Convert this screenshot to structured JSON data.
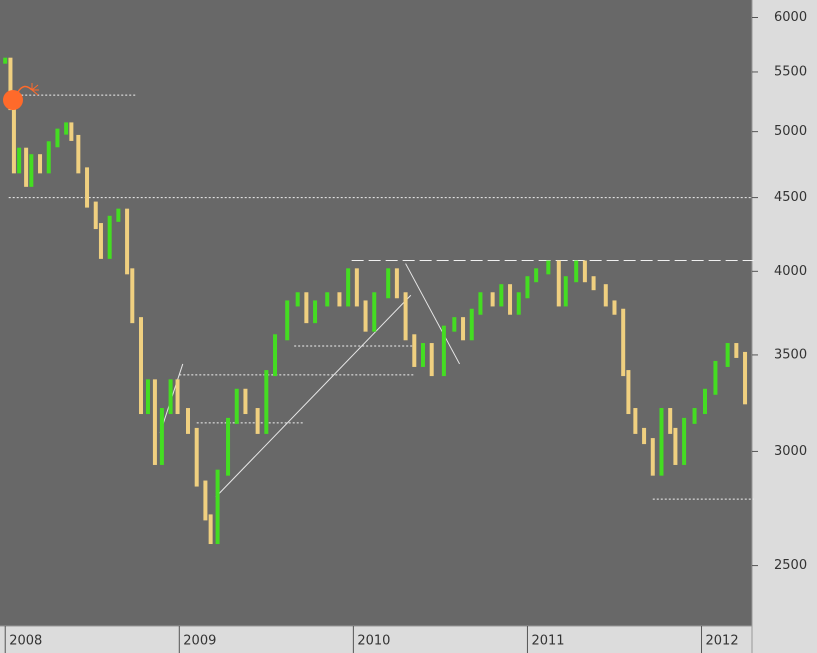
{
  "chart_data": {
    "type": "ohlc",
    "log_scale": true,
    "up_color": "#44dd22",
    "down_color": "#f0d080",
    "x": [
      2008.0,
      2008.03,
      2008.05,
      2008.08,
      2008.12,
      2008.15,
      2008.2,
      2008.25,
      2008.3,
      2008.35,
      2008.38,
      2008.42,
      2008.47,
      2008.52,
      2008.55,
      2008.6,
      2008.65,
      2008.7,
      2008.73,
      2008.78,
      2008.82,
      2008.86,
      2008.9,
      2008.95,
      2008.99,
      2009.05,
      2009.1,
      2009.15,
      2009.18,
      2009.22,
      2009.28,
      2009.33,
      2009.38,
      2009.45,
      2009.5,
      2009.55,
      2009.62,
      2009.68,
      2009.73,
      2009.78,
      2009.85,
      2009.92,
      2009.97,
      2010.02,
      2010.07,
      2010.12,
      2010.2,
      2010.25,
      2010.3,
      2010.35,
      2010.4,
      2010.45,
      2010.52,
      2010.58,
      2010.63,
      2010.68,
      2010.73,
      2010.8,
      2010.85,
      2010.9,
      2010.95,
      2011.0,
      2011.05,
      2011.12,
      2011.18,
      2011.22,
      2011.28,
      2011.33,
      2011.38,
      2011.45,
      2011.5,
      2011.55,
      2011.58,
      2011.62,
      2011.67,
      2011.72,
      2011.77,
      2011.82,
      2011.85,
      2011.9,
      2011.96,
      2012.02,
      2012.08,
      2012.15,
      2012.2,
      2012.25
    ],
    "values": [
      5600,
      5200,
      4700,
      4850,
      4600,
      4800,
      4700,
      4900,
      5000,
      5050,
      4950,
      4700,
      4450,
      4300,
      4100,
      4350,
      4400,
      4000,
      3700,
      3200,
      3350,
      2950,
      3200,
      3350,
      3200,
      3100,
      2850,
      2700,
      2600,
      2900,
      3150,
      3300,
      3200,
      3100,
      3400,
      3600,
      3800,
      3850,
      3700,
      3800,
      3850,
      3800,
      4000,
      3800,
      3650,
      3850,
      4000,
      3850,
      3600,
      3450,
      3550,
      3400,
      3650,
      3700,
      3600,
      3750,
      3850,
      3800,
      3900,
      3750,
      3850,
      3950,
      4000,
      4050,
      3800,
      3950,
      4050,
      3950,
      3900,
      3800,
      3750,
      3400,
      3200,
      3100,
      3050,
      2900,
      3200,
      3100,
      2950,
      3150,
      3200,
      3300,
      3450,
      3550,
      3500,
      3250
    ],
    "levels": [
      {
        "value": 5300,
        "from": 2008.0,
        "to": 2008.75,
        "style": "dotted"
      },
      {
        "value": 4500,
        "from": 2008.02,
        "to": 2012.3,
        "style": "dotted"
      },
      {
        "value": 4070,
        "from": 2009.99,
        "to": 2012.3,
        "style": "dashed"
      },
      {
        "value": 3550,
        "from": 2009.66,
        "to": 2010.35,
        "style": "dotted"
      },
      {
        "value": 3390,
        "from": 2009.0,
        "to": 2010.35,
        "style": "dotted"
      },
      {
        "value": 3140,
        "from": 2009.1,
        "to": 2009.72,
        "style": "dotted"
      },
      {
        "value": 2780,
        "from": 2011.72,
        "to": 2012.3,
        "style": "dotted"
      }
    ],
    "trendlines": [
      {
        "x": [
          2009.21,
          2010.33
        ],
        "y": [
          2790,
          3850
        ]
      },
      {
        "x": [
          2010.3,
          2010.61
        ],
        "y": [
          4050,
          3450
        ]
      },
      {
        "x": [
          2008.89,
          2009.02
        ],
        "y": [
          3090,
          3450
        ]
      }
    ],
    "xlim": [
      2007.97,
      2012.29
    ],
    "xticks": [
      2008,
      2009,
      2010,
      2011,
      2012
    ],
    "ylim": [
      2270,
      6170
    ],
    "yticks": [
      2500,
      3000,
      3500,
      4000,
      4500,
      5000,
      5500,
      6000
    ]
  }
}
